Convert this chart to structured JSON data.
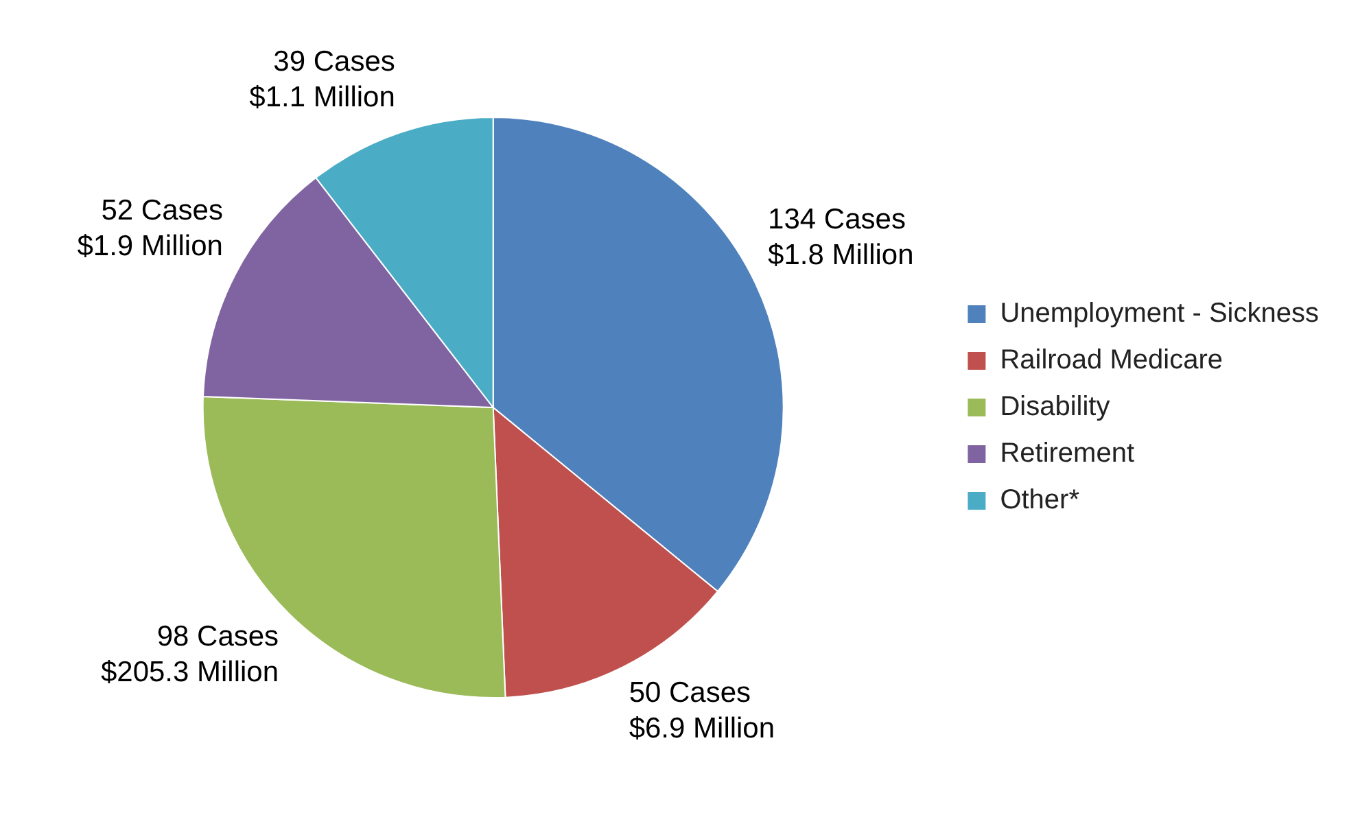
{
  "chart_data": {
    "type": "pie",
    "categories": [
      "Unemployment - Sickness",
      "Railroad Medicare",
      "Disability",
      "Retirement",
      "Other*"
    ],
    "values": [
      134,
      50,
      98,
      52,
      39
    ],
    "colors": [
      "#4f81bd",
      "#c0504d",
      "#9bbb59",
      "#8064a2",
      "#4bacc6"
    ],
    "value_labels": [
      "134 Cases\n$1.8 Million",
      "50 Cases\n$6.9 Million",
      "98 Cases\n$205.3 Million",
      "52 Cases\n$1.9 Million",
      "39 Cases\n$1.1 Million"
    ],
    "legend": "right"
  }
}
